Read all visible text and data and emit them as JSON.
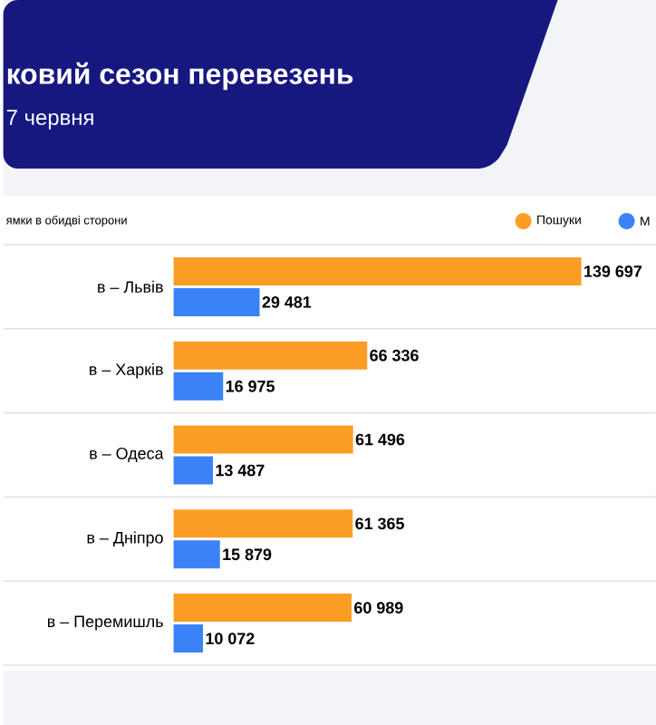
{
  "chart_data": {
    "type": "bar",
    "orientation": "horizontal",
    "title": "ковий сезон перевезень",
    "subtitle": "7 червня",
    "annotations": [
      "ямки в обидві сторони"
    ],
    "categories": [
      "в – Львів",
      "в – Харків",
      "в – Одеса",
      "в – Дніпро",
      "в – Перемишль"
    ],
    "series": [
      {
        "name": "Пошуки",
        "color": "#fb9d25",
        "values": [
          139697,
          66336,
          61496,
          61365,
          60989
        ],
        "value_labels": [
          "139 697",
          "66 336",
          "61 496",
          "61 365",
          "60 989"
        ]
      },
      {
        "name": "М",
        "color": "#3b82f6",
        "values": [
          29481,
          16975,
          13487,
          15879,
          10072
        ],
        "value_labels": [
          "29 481",
          "16 975",
          "13 487",
          "15 879",
          "10 072"
        ]
      }
    ],
    "legend": "top right"
  }
}
